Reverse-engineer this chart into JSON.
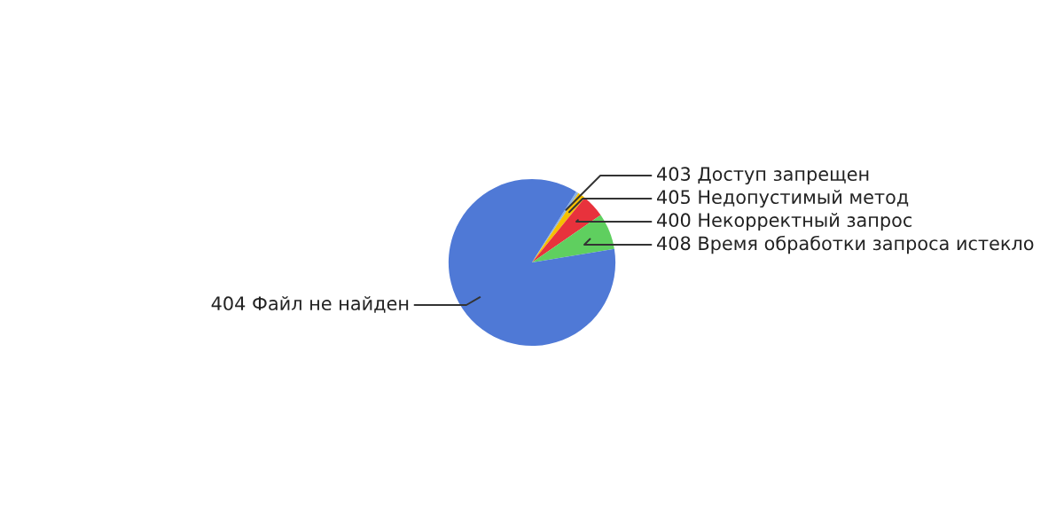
{
  "chart_data": {
    "type": "pie",
    "categories": [
      "403 Доступ запрещен",
      "405 Недопустимый метод",
      "400 Некорректный запрос",
      "408 Время обработки запроса истекло",
      "404 Файл не найден"
    ],
    "values": [
      0.5,
      1.5,
      4.5,
      7,
      86.5
    ],
    "colors": [
      "#8db4e2",
      "#f5c000",
      "#e8323c",
      "#5fcf5f",
      "#4f79d6"
    ],
    "legend": false
  }
}
